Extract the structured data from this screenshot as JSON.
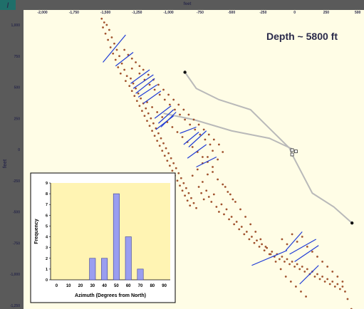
{
  "chart_data": [
    {
      "type": "scatter",
      "title": "Depth ~ 5800 ft",
      "xlabel": "feet",
      "ylabel": "feet",
      "x_ticks": [
        -2000,
        -1750,
        -1500,
        -1250,
        -1000,
        -750,
        -500,
        -250,
        0,
        250,
        500
      ],
      "y_ticks": [
        1000,
        750,
        500,
        250,
        0,
        -250,
        -500,
        -750,
        -1000,
        -1250
      ],
      "xlim": [
        -2150,
        550
      ],
      "ylim": [
        -1280,
        1120
      ],
      "colors": {
        "points": "#a0522d",
        "strikes": "#1f3bd6",
        "well": "#b9b9b9",
        "background": "#fffde6"
      },
      "fracture_strikes": [
        {
          "x1": -1520,
          "y1": 700,
          "x2": -1340,
          "y2": 920
        },
        {
          "x1": -1420,
          "y1": 670,
          "x2": -1280,
          "y2": 780
        },
        {
          "x1": -1300,
          "y1": 530,
          "x2": -1150,
          "y2": 640
        },
        {
          "x1": -1280,
          "y1": 490,
          "x2": -1120,
          "y2": 600
        },
        {
          "x1": -1260,
          "y1": 450,
          "x2": -1110,
          "y2": 570
        },
        {
          "x1": -1240,
          "y1": 420,
          "x2": -1090,
          "y2": 520
        },
        {
          "x1": -1200,
          "y1": 370,
          "x2": -1060,
          "y2": 470
        },
        {
          "x1": -1110,
          "y1": 250,
          "x2": -980,
          "y2": 350
        },
        {
          "x1": -1080,
          "y1": 210,
          "x2": -960,
          "y2": 320
        },
        {
          "x1": -1060,
          "y1": 180,
          "x2": -940,
          "y2": 300
        },
        {
          "x1": -1100,
          "y1": 160,
          "x2": -960,
          "y2": 270
        },
        {
          "x1": -910,
          "y1": 130,
          "x2": -780,
          "y2": 180
        },
        {
          "x1": -880,
          "y1": 40,
          "x2": -760,
          "y2": 140
        },
        {
          "x1": -840,
          "y1": 20,
          "x2": -700,
          "y2": 150
        },
        {
          "x1": -850,
          "y1": -70,
          "x2": -700,
          "y2": 40
        },
        {
          "x1": -780,
          "y1": -140,
          "x2": -620,
          "y2": -60
        },
        {
          "x1": -340,
          "y1": -930,
          "x2": -60,
          "y2": -810
        },
        {
          "x1": -70,
          "y1": -810,
          "x2": 60,
          "y2": -660
        },
        {
          "x1": -40,
          "y1": -840,
          "x2": 170,
          "y2": -720
        },
        {
          "x1": 0,
          "y1": -900,
          "x2": 190,
          "y2": -770
        },
        {
          "x1": 40,
          "y1": -1080,
          "x2": 190,
          "y2": -930
        }
      ],
      "wellbore": {
        "path": [
          [
            -870,
            620
          ],
          [
            -780,
            490
          ],
          [
            -600,
            400
          ],
          [
            -350,
            320
          ],
          [
            -40,
            10
          ],
          [
            -20,
            -40
          ],
          [
            140,
            -350
          ],
          [
            310,
            -460
          ],
          [
            455,
            -590
          ]
        ],
        "path2": [
          [
            -1040,
            290
          ],
          [
            -800,
            240
          ],
          [
            -500,
            150
          ],
          [
            -200,
            90
          ],
          [
            -10,
            0
          ]
        ],
        "endpoints": [
          [
            -870,
            620
          ],
          [
            455,
            -590
          ]
        ],
        "markers": [
          [
            -20,
            -5
          ],
          [
            -20,
            -40
          ],
          [
            10,
            -15
          ]
        ]
      },
      "points": [
        [
          -1530,
          1050
        ],
        [
          -1510,
          1020
        ],
        [
          -1490,
          1000
        ],
        [
          -1520,
          980
        ],
        [
          -1470,
          960
        ],
        [
          -1500,
          930
        ],
        [
          -1450,
          900
        ],
        [
          -1480,
          880
        ],
        [
          -1430,
          850
        ],
        [
          -1460,
          820
        ],
        [
          -1410,
          800
        ],
        [
          -1440,
          770
        ],
        [
          -1390,
          750
        ],
        [
          -1420,
          720
        ],
        [
          -1370,
          690
        ],
        [
          -1400,
          660
        ],
        [
          -1350,
          640
        ],
        [
          -1380,
          610
        ],
        [
          -1330,
          590
        ],
        [
          -1300,
          570
        ],
        [
          -1340,
          550
        ],
        [
          -1280,
          530
        ],
        [
          -1310,
          510
        ],
        [
          -1260,
          490
        ],
        [
          -1290,
          470
        ],
        [
          -1240,
          450
        ],
        [
          -1270,
          430
        ],
        [
          -1220,
          410
        ],
        [
          -1250,
          390
        ],
        [
          -1200,
          370
        ],
        [
          -1230,
          350
        ],
        [
          -1180,
          330
        ],
        [
          -1210,
          310
        ],
        [
          -1160,
          290
        ],
        [
          -1190,
          270
        ],
        [
          -1140,
          250
        ],
        [
          -1170,
          230
        ],
        [
          -1120,
          210
        ],
        [
          -1150,
          190
        ],
        [
          -1100,
          170
        ],
        [
          -1130,
          150
        ],
        [
          -1080,
          130
        ],
        [
          -1110,
          110
        ],
        [
          -1060,
          90
        ],
        [
          -1090,
          70
        ],
        [
          -1040,
          50
        ],
        [
          -1070,
          30
        ],
        [
          -1020,
          10
        ],
        [
          -1050,
          -10
        ],
        [
          -1000,
          -30
        ],
        [
          -1030,
          -50
        ],
        [
          -980,
          -70
        ],
        [
          -1010,
          -90
        ],
        [
          -960,
          -110
        ],
        [
          -990,
          -130
        ],
        [
          -940,
          -150
        ],
        [
          -970,
          -170
        ],
        [
          -920,
          -190
        ],
        [
          -950,
          -210
        ],
        [
          -900,
          -230
        ],
        [
          -930,
          -250
        ],
        [
          -880,
          -270
        ],
        [
          -910,
          -290
        ],
        [
          -860,
          -310
        ],
        [
          -890,
          -330
        ],
        [
          -840,
          -350
        ],
        [
          -870,
          -370
        ],
        [
          -820,
          -390
        ],
        [
          -850,
          -410
        ],
        [
          -800,
          -430
        ],
        [
          -830,
          -450
        ],
        [
          -780,
          -470
        ],
        [
          -760,
          -300
        ],
        [
          -740,
          -350
        ],
        [
          -720,
          -400
        ],
        [
          -700,
          -330
        ],
        [
          -680,
          -380
        ],
        [
          -660,
          -420
        ],
        [
          -640,
          -360
        ],
        [
          -620,
          -460
        ],
        [
          -600,
          -500
        ],
        [
          -580,
          -440
        ],
        [
          -560,
          -520
        ],
        [
          -540,
          -480
        ],
        [
          -520,
          -560
        ],
        [
          -500,
          -540
        ],
        [
          -480,
          -600
        ],
        [
          -460,
          -580
        ],
        [
          -440,
          -640
        ],
        [
          -420,
          -620
        ],
        [
          -400,
          -680
        ],
        [
          -380,
          -660
        ],
        [
          -360,
          -720
        ],
        [
          -340,
          -700
        ],
        [
          -320,
          -750
        ],
        [
          -300,
          -730
        ],
        [
          -280,
          -780
        ],
        [
          -260,
          -760
        ],
        [
          -240,
          -810
        ],
        [
          -220,
          -790
        ],
        [
          -200,
          -840
        ],
        [
          -180,
          -820
        ],
        [
          -160,
          -860
        ],
        [
          -140,
          -840
        ],
        [
          -120,
          -880
        ],
        [
          -100,
          -860
        ],
        [
          -80,
          -900
        ],
        [
          -60,
          -880
        ],
        [
          -40,
          -920
        ],
        [
          -20,
          -900
        ],
        [
          0,
          -940
        ],
        [
          20,
          -920
        ],
        [
          40,
          -960
        ],
        [
          60,
          -940
        ],
        [
          80,
          -980
        ],
        [
          100,
          -960
        ],
        [
          120,
          -1000
        ],
        [
          140,
          -980
        ],
        [
          160,
          -1020
        ],
        [
          180,
          -1000
        ],
        [
          200,
          -1040
        ],
        [
          220,
          -1020
        ],
        [
          240,
          -1060
        ],
        [
          260,
          -1040
        ],
        [
          280,
          -1080
        ],
        [
          300,
          -1060
        ],
        [
          320,
          -1100
        ],
        [
          340,
          -1080
        ],
        [
          360,
          -1120
        ],
        [
          380,
          -1100
        ],
        [
          400,
          -1140
        ],
        [
          450,
          -1280
        ],
        [
          -1290,
          650
        ],
        [
          -1230,
          610
        ],
        [
          -1190,
          560
        ],
        [
          -1150,
          520
        ],
        [
          -1110,
          480
        ],
        [
          -1070,
          440
        ],
        [
          -1030,
          400
        ],
        [
          -990,
          360
        ],
        [
          -950,
          320
        ],
        [
          -910,
          280
        ],
        [
          -870,
          240
        ],
        [
          -830,
          200
        ],
        [
          -790,
          160
        ],
        [
          -750,
          120
        ],
        [
          -710,
          80
        ],
        [
          -670,
          40
        ],
        [
          -650,
          -10
        ],
        [
          -690,
          -60
        ],
        [
          -730,
          -110
        ],
        [
          -770,
          -160
        ],
        [
          -810,
          -210
        ],
        [
          -1160,
          600
        ],
        [
          -1120,
          560
        ],
        [
          -1080,
          520
        ],
        [
          -1040,
          480
        ],
        [
          -1000,
          440
        ],
        [
          -960,
          400
        ],
        [
          -920,
          360
        ],
        [
          -880,
          320
        ],
        [
          -840,
          280
        ],
        [
          -800,
          240
        ],
        [
          -760,
          200
        ],
        [
          -720,
          160
        ],
        [
          -680,
          120
        ],
        [
          -640,
          80
        ],
        [
          -600,
          40
        ],
        [
          -570,
          -20
        ],
        [
          -610,
          -80
        ],
        [
          -650,
          -140
        ],
        [
          -690,
          -200
        ],
        [
          -730,
          -260
        ],
        [
          -550,
          -300
        ],
        [
          -510,
          -360
        ],
        [
          -470,
          -420
        ],
        [
          -430,
          -480
        ],
        [
          -390,
          -540
        ],
        [
          -350,
          -600
        ],
        [
          -310,
          -660
        ],
        [
          -270,
          -720
        ],
        [
          -230,
          -780
        ],
        [
          -190,
          -840
        ],
        [
          -150,
          -900
        ],
        [
          -110,
          -960
        ],
        [
          -70,
          -1020
        ],
        [
          -30,
          -1060
        ],
        [
          10,
          -1100
        ],
        [
          50,
          -1140
        ],
        [
          90,
          -1180
        ],
        [
          -100,
          -720
        ],
        [
          -60,
          -760
        ],
        [
          -20,
          -680
        ],
        [
          20,
          -740
        ],
        [
          60,
          -700
        ],
        [
          100,
          -780
        ],
        [
          140,
          -820
        ],
        [
          180,
          -860
        ],
        [
          220,
          -900
        ],
        [
          260,
          -940
        ],
        [
          300,
          -980
        ],
        [
          340,
          -1020
        ],
        [
          380,
          -1060
        ],
        [
          420,
          -1200
        ],
        [
          -1350,
          800
        ],
        [
          -1320,
          760
        ],
        [
          -1290,
          730
        ],
        [
          -1260,
          700
        ],
        [
          -1230,
          670
        ],
        [
          -1200,
          640
        ],
        [
          -1170,
          380
        ],
        [
          -1130,
          340
        ],
        [
          -1090,
          300
        ],
        [
          -1050,
          260
        ],
        [
          -1010,
          220
        ],
        [
          -970,
          180
        ],
        [
          -930,
          140
        ],
        [
          -890,
          100
        ],
        [
          -850,
          60
        ],
        [
          -810,
          20
        ],
        [
          -770,
          -20
        ],
        [
          -730,
          -60
        ],
        [
          -690,
          -100
        ],
        [
          -650,
          -180
        ],
        [
          -610,
          -240
        ],
        [
          -570,
          -280
        ],
        [
          -530,
          -340
        ],
        [
          -490,
          -400
        ]
      ]
    },
    {
      "type": "bar",
      "title": "",
      "xlabel": "Azimuth (Degrees from North)",
      "ylabel": "Frequency",
      "categories": [
        0,
        10,
        20,
        30,
        40,
        50,
        60,
        70,
        80,
        90
      ],
      "values": [
        0,
        0,
        0,
        2,
        2,
        8,
        4,
        1,
        0,
        0
      ],
      "ylim": [
        0,
        9
      ],
      "y_ticks": [
        0,
        1,
        2,
        3,
        4,
        5,
        6,
        7,
        8,
        9
      ],
      "colors": {
        "bar": "#9a9ef0",
        "bar_edge": "#3a3f9a",
        "background": "#fff4b3"
      }
    }
  ]
}
